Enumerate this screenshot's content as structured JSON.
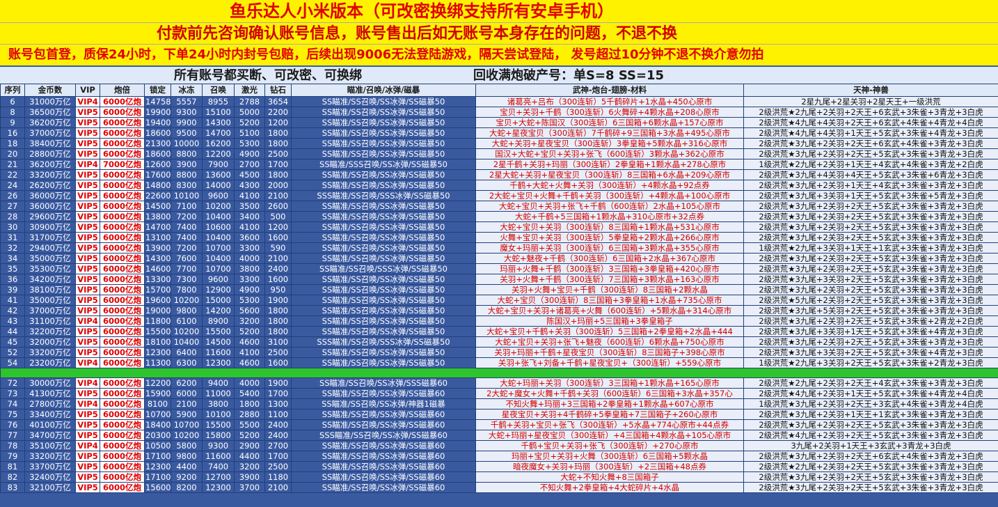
{
  "header": {
    "title": "鱼乐达人小米版本（可改密换绑支持所有安卓手机）",
    "notice": "付款前先咨询确认账号信息，账号售出后如无账号本身存在的问题，不退不换",
    "guarantee": "账号包首登，质保24小时，下单24小时内封号包赔，后续出现9006无法登陆游戏，隔天尝试登陆，   发号超过10分钟不退不换介意勿拍",
    "promo": [
      "所有账号都买断、可改密、可换绑",
      "回收满炮破产号：单S=8   SS=15"
    ]
  },
  "table": {
    "columns": [
      "序列",
      "金币数",
      "VIP",
      "炮倍",
      "锁定",
      "冰冻",
      "召唤",
      "激光",
      "钻石",
      "瞄准/召唤/冰弹/磁暴",
      "武神-炮台-翅膀-材料",
      "天神-神兽"
    ],
    "groups": [
      [
        [
          "6",
          "31000万亿",
          "VIP4",
          "6000亿炮",
          "14758",
          "5557",
          "8955",
          "2788",
          "3654",
          "SS瞄准/SS召唤/SS冰弹/SS磁暴50",
          "诸葛亮+吕布（300连斩）5千鹤碎片+1水晶+450心原市",
          "2星九尾+2星关羽+2星天王+一级洪荒"
        ],
        [
          "8",
          "36500万亿",
          "VIP5",
          "6000亿炮",
          "19900",
          "9300",
          "15100",
          "5000",
          "2200",
          "SS瞄准/SS召唤/SS冰弹/SS磁暴50",
          "宝贝+关羽+千鹤（300连斩）6火舞碎+4颗水晶+208心原市",
          "2级洪荒★2九尾+2关羽+2天王+6玄武+3朱雀+3青龙+3白虎"
        ],
        [
          "9",
          "36200万亿",
          "VIP5",
          "6000亿炮",
          "19400",
          "9900",
          "14300",
          "5200",
          "1200",
          "SS瞄准/SS召唤/SS冰弹/SS磁暴50",
          "宝贝+大蛇+陈国汉（300连斩）6三国箱+6颗水晶+157心原市",
          "2级洪荒★4九尾+4关羽+2天王+6玄武+4朱雀+4青龙+4白虎"
        ],
        [
          "16",
          "37000万亿",
          "VIP5",
          "6000亿炮",
          "18600",
          "9500",
          "14700",
          "5100",
          "1800",
          "SS瞄准/SS召唤/SS冰弹/SS磁暴50",
          "大蛇+星夜宝贝（300连斩）7千鹤碎+9三国箱+3水晶+495心原市",
          "2级洪荒★4九尾+4关羽+1天王+5玄武+3朱雀+4青龙+3白虎"
        ],
        [
          "18",
          "38400万亿",
          "VIP5",
          "6000亿炮",
          "21300",
          "10000",
          "16200",
          "5300",
          "1800",
          "SS瞄准/SS召唤/SS冰弹/SS磁暴50",
          "大蛇+关羽+星夜宝贝（300连斩）3拳皇箱+5颗水晶+316心原市",
          "2级洪荒★3九尾+2关羽+2天王+6玄武+4朱雀+3青龙+3白虎"
        ],
        [
          "20",
          "28800万亿",
          "VIP5",
          "6000亿炮",
          "18600",
          "8800",
          "12200",
          "4900",
          "2500",
          "SS瞄准/SS召唤/SS冰弹/SS磁暴50",
          "国汉+大蛇+宝贝+关羽+张飞（600连斩）3颗水晶+362心原市",
          "2级洪荒★3九尾+2关羽+2天王+5玄武+3朱雀+3青龙+3白虎"
        ],
        [
          "21",
          "36200万亿",
          "VIP4",
          "7000亿炮",
          "12600",
          "3900",
          "7900",
          "2700",
          "1700",
          "SS瞄准/SSS召唤/SS冰弹/SS磁暴50",
          "2星千鹤+关羽+玛丽（300连斩）2拳皇箱+1颗水晶+278心原市",
          "1级洪荒★2九尾+2关羽+1天王+4玄武+4朱雀+3青龙+2白虎"
        ],
        [
          "22",
          "33200万亿",
          "VIP5",
          "6000亿炮",
          "17600",
          "8800",
          "13600",
          "4500",
          "1800",
          "SS瞄准/SS召唤/SS冰弹/SS磁暴50",
          "2星大蛇+关羽+星夜宝贝（300连斩）8三国箱+6水晶+209心原市",
          "2级洪荒★3九尾+4关羽+4天王+5玄武+3朱雀+6青龙+3白虎"
        ],
        [
          "24",
          "26200万亿",
          "VIP5",
          "6000亿炮",
          "14800",
          "8300",
          "14000",
          "4300",
          "2000",
          "SS瞄准/SS召唤/SS冰弹/SS磁暴50",
          "千鹤+大蛇+火舞+关羽（300连斩）+4颗水晶+92点券",
          "2级洪荒★3九尾+2关羽+1天王+4玄武+3朱雀+3青龙+3白虎"
        ],
        [
          "26",
          "36000万亿",
          "VIP5",
          "6000亿炮",
          "22600",
          "10100",
          "9600",
          "4100",
          "2100",
          "SSS瞄准/SS召唤/SSS冰弹/SS磁暴50",
          "2大蛇+宝贝+火舞+千鹤+关羽（300连斩）+4颗水晶+100心原市",
          "2级洪荒★3九尾+3关羽+1天王+5玄武+3朱雀+5青龙+3白虎"
        ],
        [
          "27",
          "36000万亿",
          "VIP5",
          "6000亿炮",
          "14500",
          "7100",
          "10200",
          "3500",
          "2600",
          "SS瞄准/SS召唤/SS冰弹/SS磁暴50",
          "大蛇+宝贝+关羽+张飞+千鹤（600连斩）2水晶+105心原市",
          "2级洪荒★3九尾+2关羽+2天王+5玄武+3朱雀+3青龙+3白虎"
        ],
        [
          "28",
          "29600万亿",
          "VIP5",
          "6000亿炮",
          "13800",
          "7200",
          "10400",
          "3400",
          "500",
          "SS瞄准/SS召唤/SS冰弹/SS磁暴50",
          "大蛇+千鹤+5三国箱+1颗水晶+310心原市+32点券",
          "2级洪荒★3九尾+2关羽+2天王+5玄武+3朱雀+3青龙+3白虎"
        ],
        [
          "30",
          "30900万亿",
          "VIP5",
          "6000亿炮",
          "14700",
          "7400",
          "10600",
          "4100",
          "1200",
          "SS瞄准/SS召唤/SS冰弹/SS磁暴50",
          "大蛇+宝贝+关羽（300连斩）8三国箱+1颗水晶+531心原市",
          "2级洪荒★3九尾+2关羽+2天王+5玄武+3朱雀+3青龙+3白虎"
        ],
        [
          "31",
          "31700万亿",
          "VIP5",
          "6000亿炮",
          "13100",
          "7400",
          "10400",
          "3600",
          "1600",
          "SS瞄准/SS召唤/SS冰弹/SS磁暴50",
          "火舞+宝贝+关羽（300连斩）5拳皇箱+2颗水晶+266心原市",
          "2级洪荒★3九尾+2关羽+2天王+5玄武+3朱雀+3青龙+3白虎"
        ],
        [
          "32",
          "29400万亿",
          "VIP5",
          "6000亿炮",
          "13900",
          "7200",
          "10700",
          "3300",
          "590",
          "SS瞄准/SS召唤/SS冰弹/SS磁暴50",
          "魔女+玛丽+关羽（300连斩）6三国箱+3颗水晶+355心原市",
          "1级洪荒★2九尾+3关羽+1天王+1玄武+3朱雀+3青龙+3白虎"
        ],
        [
          "34",
          "35000万亿",
          "VIP5",
          "6000亿炮",
          "14300",
          "7600",
          "10400",
          "4000",
          "2100",
          "SS瞄准/SS召唤/SS冰弹/SS磁暴50",
          "大蛇+魅夜+千鹤（300连斩）6三国箱+2水晶+367心原市",
          "2级洪荒★3九尾+2关羽+2天王+5玄武+3朱雀+3青龙+3白虎"
        ],
        [
          "35",
          "35300万亿",
          "VIP5",
          "6000亿炮",
          "14600",
          "7700",
          "10700",
          "3800",
          "2400",
          "SS瞄准/SS召唤/SSS冰弹/SS磁暴50",
          "玛丽+火舞+千鹤（300连斩）3三国箱+3拳皇箱+420心原市",
          "2级洪荒★3九尾+2关羽+2天王+5玄武+3朱雀+3青龙+3白虎"
        ],
        [
          "36",
          "34200万亿",
          "VIP5",
          "6000亿炮",
          "13300",
          "7300",
          "9600",
          "3300",
          "1600",
          "SS瞄准/SS召唤/SS冰弹/SS磁暴50",
          "关羽+火舞+千鹤（300连斩）7三国箱+3颗水晶+163心原市",
          "2级洪荒★3九尾+3关羽+2天王+5玄武+3朱雀+3青龙+3白虎"
        ],
        [
          "39",
          "38100万亿",
          "VIP5",
          "6000亿炮",
          "15700",
          "7800",
          "12900",
          "4900",
          "950",
          "SS瞄准/SS召唤/SS冰弹/SS磁暴50",
          "关羽+火舞+宝贝+千鹤（300连斩）8三国箱+2颗水晶",
          "2级洪荒★3九尾+2关羽+2天王+5玄武+3朱雀+3青龙+3白虎"
        ],
        [
          "41",
          "35000万亿",
          "VIP5",
          "6000亿炮",
          "19600",
          "10200",
          "15000",
          "5300",
          "1900",
          "SS瞄准/SS召唤/SS冰弹/SS磁暴50",
          "大蛇+宝贝（300连斩）8三国箱+3拳皇箱+1水晶+735心原市",
          "2级洪荒★5九尾+2关羽+2天王+5玄武+3朱雀+3青龙+3白虎"
        ],
        [
          "42",
          "37000万亿",
          "VIP5",
          "6000亿炮",
          "19000",
          "9800",
          "14200",
          "5600",
          "1800",
          "SS瞄准/SS召唤/SS冰弹/SS磁暴50",
          "大蛇+宝贝+关羽+诸葛亮+火舞（600连斩）+5颗水晶+314心原市",
          "2级洪荒★3九尾+5关羽+2天王+5玄武+3朱雀+3青龙+3白虎"
        ],
        [
          "43",
          "31100万亿",
          "VIP4",
          "6000亿炮",
          "11800",
          "6100",
          "8900",
          "3200",
          "1800",
          "SS瞄准/SS召唤/SS冰弹/SS磁暴50",
          "陈国汉+玛丽+5三国箱+3拳皇箱子",
          "2级洪荒★3九尾+2关羽+2天王+5玄武+3朱雀+2青龙+2白虎"
        ],
        [
          "44",
          "32200万亿",
          "VIP5",
          "6000亿炮",
          "15500",
          "10200",
          "15500",
          "5200",
          "1800",
          "SS瞄准/SS召唤/SS冰弹/SS磁暴50",
          "大蛇+宝贝+千鹤+关羽（300连斩）5三国箱+2拳皇箱+2水晶+444",
          "2级洪荒★3九尾+3关羽+1天王+5玄武+3朱雀+4青龙+3白虎"
        ],
        [
          "45",
          "32000万亿",
          "VIP5",
          "6000亿炮",
          "18100",
          "10400",
          "14500",
          "4600",
          "3100",
          "SSS瞄准/SS召唤/SSS冰弹/SS磁暴50",
          "大蛇+宝贝+关羽+张飞+魅夜（600连斩）6颗水晶+750心原市",
          "2级洪荒★3九尾+2关羽+2天王+5玄武+3朱雀+3青龙+3白虎"
        ],
        [
          "52",
          "33200万亿",
          "VIP5",
          "6000亿炮",
          "12300",
          "6400",
          "11600",
          "4100",
          "2500",
          "SS瞄准/SS召唤/SS冰弹/SS磁暴50",
          "关羽+玛丽+千鹤+星夜宝贝（300连斩）8三国箱子+398心原市",
          "2级洪荒★3九尾+3关羽+2天王+5玄武+3朱雀+4青龙+3白虎"
        ],
        [
          "54",
          "23200万亿",
          "VIP4",
          "6000亿炮",
          "11300",
          "6300",
          "12300",
          "4600",
          "1600",
          "SS瞄准/SS召唤/SS冰弹/SS磁暴50",
          "关羽+张飞+刘备+千鹤+星夜宝贝+（300连斩）+559心原市",
          "1级洪荒★2九尾+3关羽+2天王+5玄武+3朱雀+2青龙+3白虎"
        ]
      ],
      [
        [
          "72",
          "30000万亿",
          "VIP4",
          "6000亿炮",
          "12200",
          "6200",
          "9400",
          "4000",
          "1900",
          "SS瞄准/SS召唤/SS冰弹/SSS磁暴60",
          "大蛇+玛丽+关羽（300连斩）3三国箱+1颗水晶+165心原市",
          "2级洪荒★2九尾+2关羽+2天王+4玄武+3朱雀+3青龙+3白虎"
        ],
        [
          "73",
          "41300万亿",
          "VIP5",
          "6000亿炮",
          "15900",
          "6000",
          "11000",
          "5400",
          "1700",
          "SS瞄准/SS召唤/SS冰弹/SS磁暴60",
          "2大蛇+魔女+火舞+千鹤+关羽（600连斩）6三国箱+3水晶+357心",
          "2级洪荒★4九尾+2关羽+1天王+5玄武+3朱雀+4青龙+4白虎"
        ],
        [
          "74",
          "27800万亿",
          "VIP4",
          "6000亿炮",
          "8100",
          "2100",
          "3800",
          "1800",
          "1300",
          "SS瞄准/SS召唤/SS冰弹/神器1磁暴",
          "不知火舞+玛丽+3三国箱+2拳皇箱+1颗水晶+607心原市",
          "1级洪荒★3九尾+2关羽+2天王+3玄武+4朱雀+3青龙+4白虎"
        ],
        [
          "75",
          "33400万亿",
          "VIP5",
          "6000亿炮",
          "10700",
          "5900",
          "10100",
          "2880",
          "1100",
          "SS瞄准/SS召唤/SS冰弹/SS磁暴60",
          "星夜宝贝+关羽+4千鹤碎+5拳皇箱+7三国箱子+260心原市",
          "2级洪荒★3九尾+2关羽+1天王+1玄武+3朱雀+3青龙+3白虎"
        ],
        [
          "76",
          "40100万亿",
          "VIP5",
          "6000亿炮",
          "18400",
          "10700",
          "15500",
          "5500",
          "2400",
          "SS瞄准/SS召唤/SS冰弹/SS磁暴60",
          "千鹤+关羽+宝贝+张飞（300连斩）+5水晶+774心原市+44点券",
          "2级洪荒★3九尾+2关羽+2天王+5玄武+3朱雀+3青龙+3白虎"
        ],
        [
          "77",
          "34700万亿",
          "VIP5",
          "6000亿炮",
          "20300",
          "10200",
          "15800",
          "5200",
          "2400",
          "SSS瞄准/SS召唤/SS冰弹/SS磁暴60",
          "大蛇+玛丽+星夜宝贝（300连斩）+4三国箱+4颗水晶+105心原市",
          "2级洪荒★4九尾+2关羽+2天王+5玄武+3朱雀+3青龙+3白虎"
        ],
        [
          "78",
          "35100万亿",
          "VIP4",
          "6000亿炮",
          "10500",
          "5800",
          "9300",
          "2900",
          "2700",
          "SS瞄准/SS召唤/SS冰弹/SS磁暴60",
          "千鹤+宝贝+关羽+张飞（300连斩）+270心原市",
          "3九尾+2关羽+1天王+3玄武+3青龙+3白虎"
        ],
        [
          "79",
          "33200万亿",
          "VIP5",
          "6000亿炮",
          "17100",
          "9800",
          "11600",
          "4400",
          "1700",
          "SS瞄准/SS召唤/SS冰弹/SS磁暴60",
          "玛丽+宝贝+关羽+火舞（300连斩）6三国箱+5颗水晶",
          "2级洪荒★3九尾+2关羽+2天王+6玄武+4朱雀+3青龙+3白虎"
        ],
        [
          "81",
          "33700万亿",
          "VIP5",
          "6000亿炮",
          "12300",
          "4400",
          "7400",
          "3200",
          "2500",
          "SS瞄准/SS召唤/SS冰弹/SS磁暴60",
          "暗夜魔女+关羽+玛丽（300连斩）+2三国箱+48点券",
          "2级洪荒★2九尾+2关羽+2天王+5玄武+3朱雀+3青龙+3白虎"
        ],
        [
          "82",
          "32400万亿",
          "VIP5",
          "6000亿炮",
          "17100",
          "9200",
          "12700",
          "3900",
          "1180",
          "SS瞄准/SS召唤/SS冰弹/SS磁暴60",
          "大蛇+不知火舞+8三国箱子",
          "2级洪荒★3九尾+2关羽+2天王+5玄武+3朱雀+3青龙+3白虎"
        ],
        [
          "83",
          "32100万亿",
          "VIP5",
          "6000亿炮",
          "15600",
          "8200",
          "12300",
          "3700",
          "2100",
          "SS瞄准/SS召唤/SS冰弹/SS磁暴60",
          "不知火舞+2拳皇箱+4大蛇碎片+4水晶",
          "2级洪荒★3九尾+2关羽+2天王+5玄武+3朱雀+3青龙+3白虎"
        ]
      ]
    ]
  }
}
